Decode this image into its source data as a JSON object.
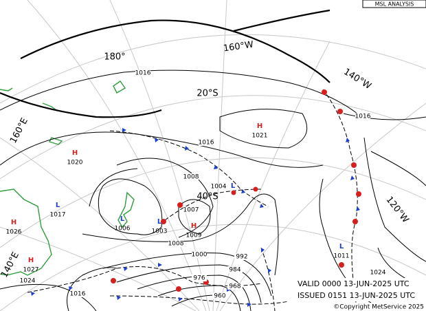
{
  "header": {
    "title": "MSL ANALYSIS"
  },
  "grid_labels": [
    "160°W",
    "180°",
    "140°W",
    "20°S",
    "160°E",
    "120°W",
    "40°S",
    "140°E"
  ],
  "isobar_labels": [
    "1016",
    "1016",
    "1016",
    "1008",
    "1007",
    "1008",
    "1000",
    "992",
    "984",
    "976",
    "968",
    "960",
    "1016",
    "1024",
    "1024",
    "1016"
  ],
  "pressure_centers": [
    {
      "symbol": "H",
      "value": "1021"
    },
    {
      "symbol": "H",
      "value": "1020"
    },
    {
      "symbol": "L",
      "value": "1017"
    },
    {
      "symbol": "H",
      "value": "1026"
    },
    {
      "symbol": "H",
      "value": "1027"
    },
    {
      "symbol": "L",
      "value": "1006"
    },
    {
      "symbol": "L",
      "value": "1003"
    },
    {
      "symbol": "H",
      "value": "1009"
    },
    {
      "symbol": "L",
      "value": "1004"
    },
    {
      "symbol": "L",
      "value": "1011"
    }
  ],
  "footer": {
    "valid": "VALID  0000  13-JUN-2025  UTC",
    "issued": "ISSUED 0151  13-JUN-2025  UTC",
    "copyright": "©Copyright MetService 2025"
  }
}
